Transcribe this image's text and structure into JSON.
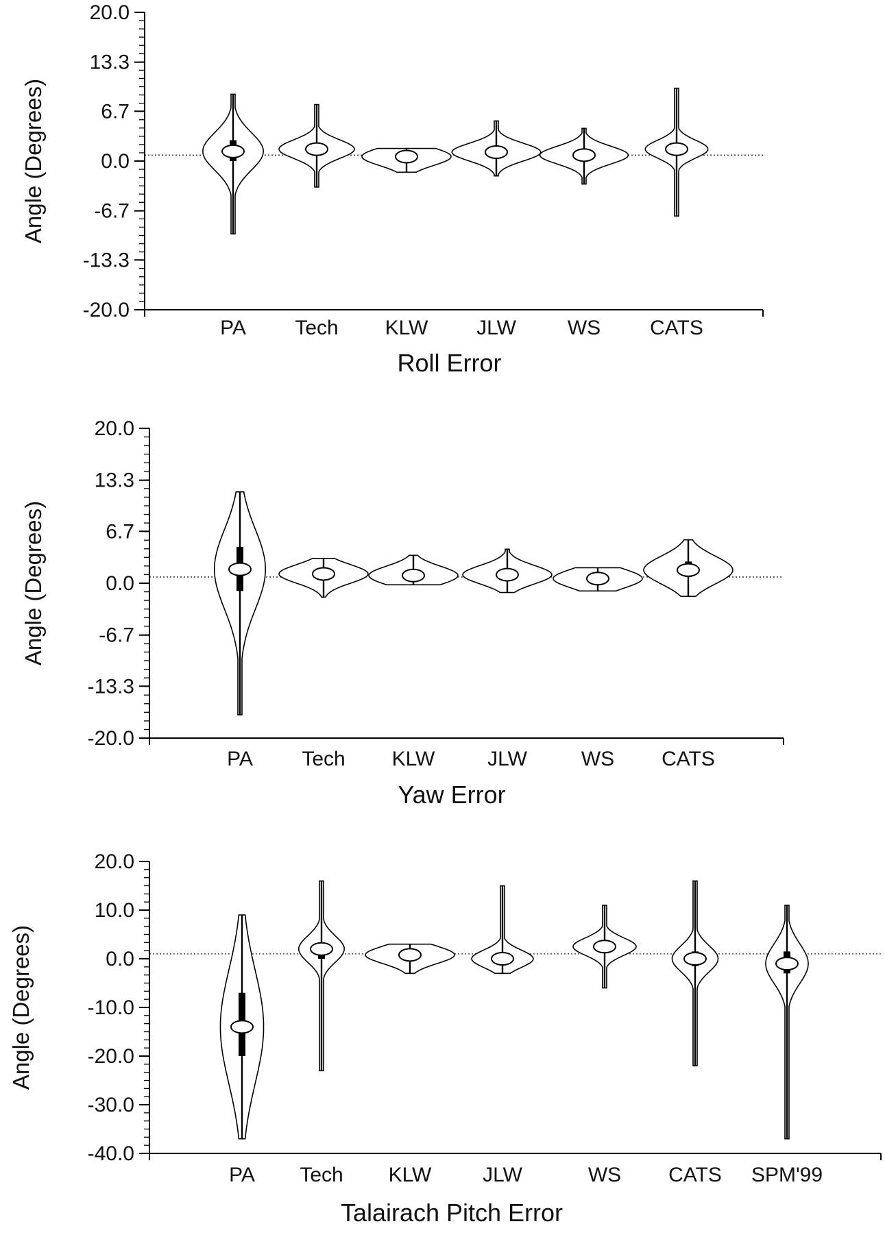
{
  "chart_data": [
    {
      "type": "violin",
      "title": "Roll Error",
      "ylabel": "Angle (Degrees)",
      "ylim": [
        -20.0,
        20.0
      ],
      "yticks": [
        "20.0",
        "13.3",
        "6.7",
        "0.0",
        "-6.7",
        "-13.3",
        "-20.0"
      ],
      "yticks_values": [
        20.0,
        13.3,
        6.7,
        0.0,
        -6.7,
        -13.3,
        -20.0
      ],
      "reference_line": 0.8,
      "categories": [
        "PA",
        "Tech",
        "KLW",
        "JLW",
        "WS",
        "CATS"
      ],
      "series": [
        {
          "category": "PA",
          "min": -9.8,
          "max": 9.0,
          "median": 1.3,
          "q1": 0.0,
          "q3": 2.8
        },
        {
          "category": "Tech",
          "min": -3.5,
          "max": 7.6,
          "median": 1.6,
          "q1": 0.8,
          "q3": 2.2
        },
        {
          "category": "KLW",
          "min": -1.5,
          "max": 1.7,
          "median": 0.6,
          "q1": 0.2,
          "q3": 1.0
        },
        {
          "category": "JLW",
          "min": -2.0,
          "max": 5.4,
          "median": 1.2,
          "q1": 0.7,
          "q3": 1.7
        },
        {
          "category": "WS",
          "min": -3.1,
          "max": 4.4,
          "median": 0.8,
          "q1": 0.4,
          "q3": 1.2
        },
        {
          "category": "CATS",
          "min": -7.4,
          "max": 9.8,
          "median": 1.6,
          "q1": 1.0,
          "q3": 2.0
        }
      ]
    },
    {
      "type": "violin",
      "title": "Yaw Error",
      "ylabel": "Angle (Degrees)",
      "ylim": [
        -20.0,
        20.0
      ],
      "yticks": [
        "20.0",
        "13.3",
        "6.7",
        "0.0",
        "-6.7",
        "-13.3",
        "-20.0"
      ],
      "yticks_values": [
        20.0,
        13.3,
        6.7,
        0.0,
        -6.7,
        -13.3,
        -20.0
      ],
      "reference_line": 0.8,
      "categories": [
        "PA",
        "Tech",
        "KLW",
        "JLW",
        "WS",
        "CATS"
      ],
      "series": [
        {
          "category": "PA",
          "min": -17.0,
          "max": 11.8,
          "median": 1.8,
          "q1": -1.0,
          "q3": 4.7
        },
        {
          "category": "Tech",
          "min": -1.8,
          "max": 3.2,
          "median": 1.2,
          "q1": 0.9,
          "q3": 1.6
        },
        {
          "category": "KLW",
          "min": -0.2,
          "max": 3.6,
          "median": 1.0,
          "q1": 0.7,
          "q3": 1.3
        },
        {
          "category": "JLW",
          "min": -1.2,
          "max": 4.4,
          "median": 1.1,
          "q1": 0.7,
          "q3": 1.5
        },
        {
          "category": "WS",
          "min": -1.0,
          "max": 2.0,
          "median": 0.6,
          "q1": 0.3,
          "q3": 0.9
        },
        {
          "category": "CATS",
          "min": -1.7,
          "max": 5.6,
          "median": 1.7,
          "q1": 0.8,
          "q3": 2.8
        }
      ]
    },
    {
      "type": "violin",
      "title": "Talairach Pitch Error",
      "ylabel": "Angle (Degrees)",
      "ylim": [
        -40.0,
        20.0
      ],
      "yticks": [
        "20.0",
        "10.0",
        "0.0",
        "-10.0",
        "-20.0",
        "-30.0",
        "-40.0"
      ],
      "yticks_values": [
        20.0,
        10.0,
        0.0,
        -10.0,
        -20.0,
        -30.0,
        -40.0
      ],
      "reference_line": 1.0,
      "categories": [
        "PA",
        "Tech",
        "KLW",
        "JLW",
        "WS",
        "CATS",
        "SPM'99"
      ],
      "series": [
        {
          "category": "PA",
          "min": -37.0,
          "max": 9.0,
          "median": -14.0,
          "q1": -20.0,
          "q3": -7.0
        },
        {
          "category": "Tech",
          "min": -23.0,
          "max": 16.0,
          "median": 2.0,
          "q1": 0.0,
          "q3": 3.0
        },
        {
          "category": "KLW",
          "min": -3.0,
          "max": 3.0,
          "median": 0.8,
          "q1": 0.3,
          "q3": 1.3
        },
        {
          "category": "JLW",
          "min": -3.0,
          "max": 15.0,
          "median": 0.0,
          "q1": -0.5,
          "q3": 0.5
        },
        {
          "category": "WS",
          "min": -6.0,
          "max": 11.0,
          "median": 2.5,
          "q1": 1.8,
          "q3": 3.2
        },
        {
          "category": "CATS",
          "min": -22.0,
          "max": 16.0,
          "median": 0.0,
          "q1": -1.5,
          "q3": 1.5
        },
        {
          "category": "SPM'99",
          "min": -37.0,
          "max": 11.0,
          "median": -1.0,
          "q1": -3.0,
          "q3": 1.5
        }
      ]
    }
  ]
}
